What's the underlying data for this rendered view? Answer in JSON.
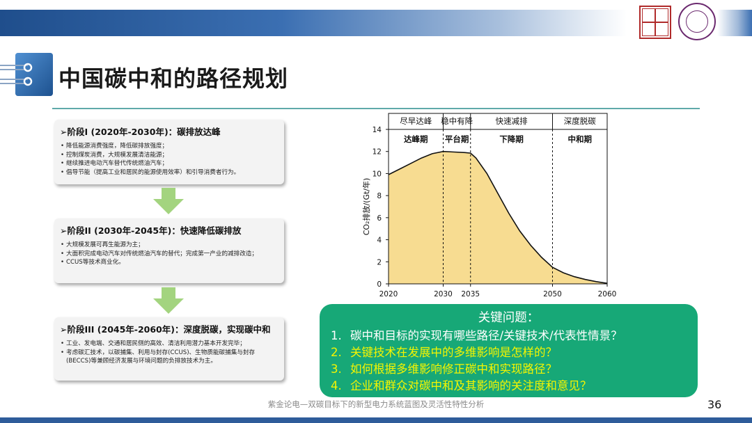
{
  "header": {
    "title": "中国碳中和的路径规划"
  },
  "stages": [
    {
      "title": "➢阶段I (2020年-2030年)：碳排放达峰",
      "bullets": [
        "降低能源消费强度，降低碳排放强度；",
        "控制煤炭消费，大规模发展清洁能源；",
        "继续推进电动汽车替代传统燃油汽车；",
        "倡导节能（提高工业和居民的能源使用效率）和引导消费者行为。"
      ]
    },
    {
      "title": "➢阶段II (2030年-2045年)：快速降低碳排放",
      "bullets": [
        "大规模发展可再生能源为主；",
        "大面积完成电动汽车对传统燃油汽车的替代；完成第一产业的减排改造；",
        "CCUS等技术商业化。"
      ]
    },
    {
      "title": "➢阶段III (2045年-2060年)：深度脱碳，实现碳中和",
      "bullets": [
        "工业、发电端、交通和居民侧的高效、清洁利用潜力基本开发完毕；",
        "考虑碳汇技术，以碳捕集、利用与封存(CCUS)、生物质能碳捕集与封存(BECCS)等兼顾经济发展与环境问题的负排放技术为主。"
      ]
    }
  ],
  "chart_data": {
    "type": "area",
    "ylabel": "CO₂排放/(Gt/年)",
    "ylim": [
      0,
      14
    ],
    "yticks": [
      0,
      2,
      4,
      6,
      8,
      10,
      12,
      14
    ],
    "xlim": [
      2020,
      2060
    ],
    "xticks": [
      2020,
      2030,
      2035,
      2050,
      2060
    ],
    "x": [
      2020,
      2022,
      2024,
      2026,
      2028,
      2030,
      2032,
      2034,
      2035,
      2036,
      2038,
      2040,
      2042,
      2044,
      2046,
      2048,
      2050,
      2052,
      2054,
      2056,
      2058,
      2060
    ],
    "y": [
      9.9,
      10.4,
      10.9,
      11.4,
      11.8,
      12.0,
      11.95,
      11.9,
      11.85,
      11.4,
      10.0,
      8.2,
      6.4,
      4.8,
      3.5,
      2.4,
      1.5,
      1.0,
      0.65,
      0.4,
      0.2,
      0.05
    ],
    "phases": [
      {
        "label": "尽早达峰",
        "period": "达峰期",
        "from": 2020,
        "to": 2030
      },
      {
        "label": "稳中有降",
        "period": "平台期",
        "from": 2030,
        "to": 2035
      },
      {
        "label": "快速减排",
        "period": "下降期",
        "from": 2035,
        "to": 2050
      },
      {
        "label": "深度脱碳",
        "period": "中和期",
        "from": 2050,
        "to": 2060
      }
    ],
    "fill_color": "#f7dc91",
    "line_color": "#111111"
  },
  "issues": {
    "title": "关键问题：",
    "items": [
      {
        "num": "1.",
        "text": "碳中和目标的实现有哪些路径/关键技术/代表性情景？",
        "color": "#ffffff"
      },
      {
        "num": "2.",
        "text": "关键技术在发展中的多维影响是怎样的？",
        "color": "#f5f500"
      },
      {
        "num": "3.",
        "text": "如何根据多维影响修正碳中和实现路径？",
        "color": "#f5f500"
      },
      {
        "num": "4.",
        "text": "企业和群众对碳中和及其影响的关注度和意见？",
        "color": "#f5f500"
      }
    ]
  },
  "footer": {
    "text": "紫金论电—双碳目标下的新型电力系统蓝图及灵活性特性分析",
    "page": "36"
  },
  "colors": {
    "accent_blue": "#1f4e8c",
    "issues_green": "#17a877",
    "arrow_green": "#9fd17f"
  }
}
